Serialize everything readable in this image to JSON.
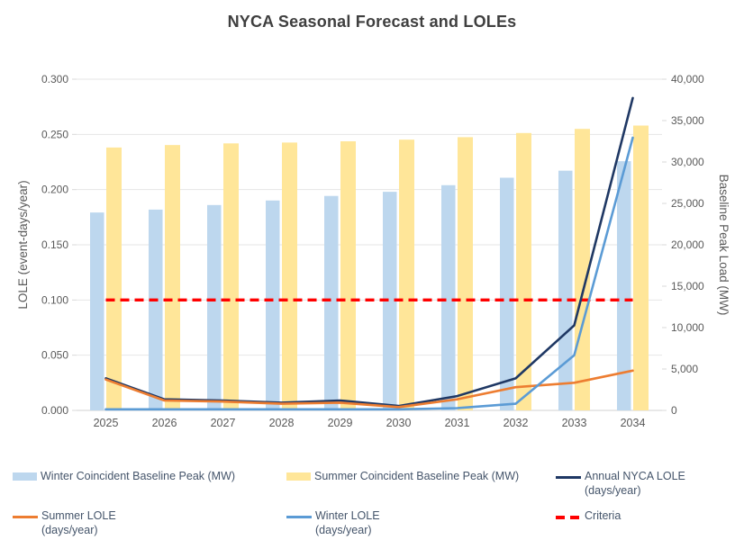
{
  "title": "NYCA Seasonal Forecast and LOLEs",
  "colors": {
    "winter_bar": "#BDD7EE",
    "summer_bar": "#FFE699",
    "annual_line": "#1F3864",
    "summer_line": "#ED7D31",
    "winter_line": "#5B9BD5",
    "criteria_line": "#FF0000",
    "gridline": "#e6e6e6",
    "axis_line": "#d9d9d9",
    "axis_text": "#595959"
  },
  "chart_data": {
    "type": "combo-bar-line",
    "title": "NYCA Seasonal Forecast and LOLEs",
    "categories": [
      "2025",
      "2026",
      "2027",
      "2028",
      "2029",
      "2030",
      "2031",
      "2032",
      "2033",
      "2034"
    ],
    "left_axis": {
      "label": "LOLE (event-days/year)",
      "min": 0,
      "max": 0.3,
      "ticks": [
        "0.300",
        "0.250",
        "0.200",
        "0.150",
        "0.100",
        "0.050",
        "0.000"
      ]
    },
    "right_axis": {
      "label": "Baseline Peak Load (MW)",
      "min": 0,
      "max": 40000,
      "ticks": [
        "40,000",
        "35,000",
        "30,000",
        "25,000",
        "20,000",
        "15,000",
        "10,000",
        "5,000",
        "0"
      ]
    },
    "grid": "horizontal",
    "legend_position": "bottom",
    "series": [
      {
        "name": "Winter Coincident Baseline Peak (MW)",
        "type": "bar",
        "axis": "right",
        "color": "#BDD7EE",
        "values": [
          23900,
          24250,
          24800,
          25350,
          25900,
          26400,
          27200,
          28100,
          28950,
          30100
        ]
      },
      {
        "name": "Summer Coincident Baseline Peak (MW)",
        "type": "bar",
        "axis": "right",
        "color": "#FFE699",
        "values": [
          31750,
          32050,
          32250,
          32350,
          32500,
          32700,
          33000,
          33500,
          34000,
          34400
        ]
      },
      {
        "name": "Annual NYCA LOLE (days/year)",
        "type": "line",
        "axis": "left",
        "color": "#1F3864",
        "values": [
          0.029,
          0.01,
          0.009,
          0.007,
          0.009,
          0.004,
          0.013,
          0.029,
          0.077,
          0.283
        ]
      },
      {
        "name": "Summer LOLE (days/year)",
        "type": "line",
        "axis": "left",
        "color": "#ED7D31",
        "values": [
          0.028,
          0.009,
          0.008,
          0.006,
          0.007,
          0.003,
          0.01,
          0.021,
          0.025,
          0.036
        ]
      },
      {
        "name": "Winter LOLE (days/year)",
        "type": "line",
        "axis": "left",
        "color": "#5B9BD5",
        "values": [
          0.0,
          0.0,
          0.0,
          0.0,
          0.0,
          0.0,
          0.002,
          0.006,
          0.05,
          0.247
        ]
      },
      {
        "name": "Criteria",
        "type": "line-dashed",
        "axis": "left",
        "color": "#FF0000",
        "constant": 0.1
      }
    ]
  },
  "legend": {
    "row1": [
      {
        "label": "Winter Coincident Baseline Peak (MW)"
      },
      {
        "label": "Summer Coincident Baseline Peak (MW)"
      },
      {
        "label": "Annual NYCA LOLE (days/year)"
      }
    ],
    "row2": [
      {
        "label": "Summer LOLE (days/year)"
      },
      {
        "label": "Winter LOLE (days/year)"
      },
      {
        "label": "Criteria"
      }
    ]
  }
}
